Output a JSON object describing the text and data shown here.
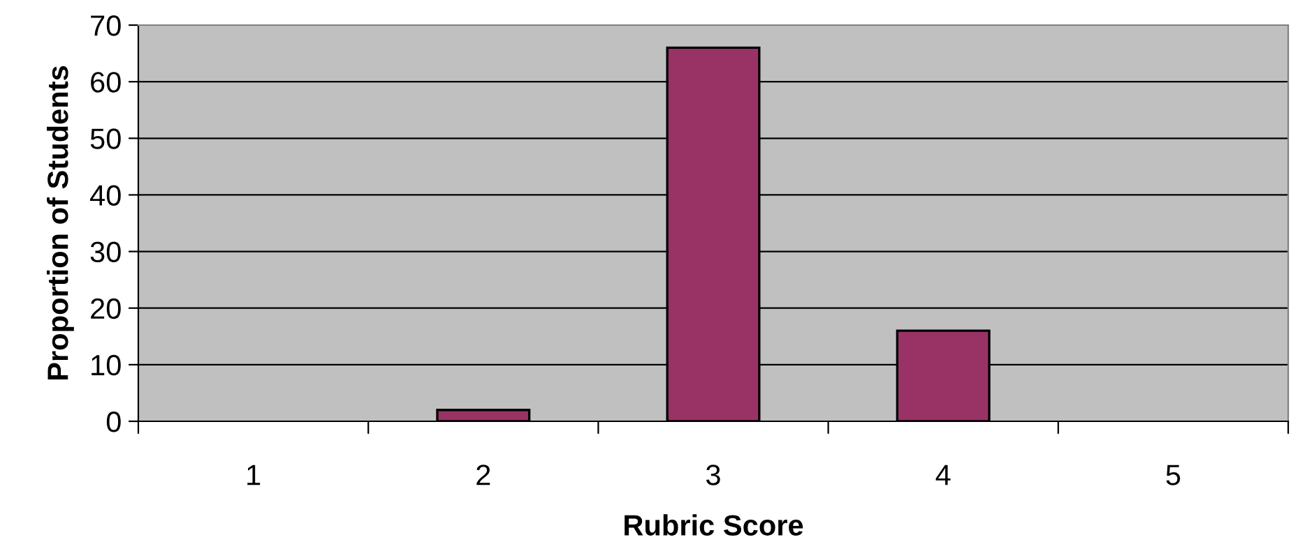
{
  "chart_data": {
    "type": "bar",
    "xlabel": "Rubric Score",
    "ylabel": "Proportion of Students",
    "categories": [
      "1",
      "2",
      "3",
      "4",
      "5"
    ],
    "values": [
      0,
      2,
      66,
      16,
      0
    ],
    "color": "#993366",
    "ylim": [
      0,
      70
    ],
    "yticks": [
      0,
      10,
      20,
      30,
      40,
      50,
      60,
      70
    ],
    "grid": "y",
    "legend": false
  }
}
